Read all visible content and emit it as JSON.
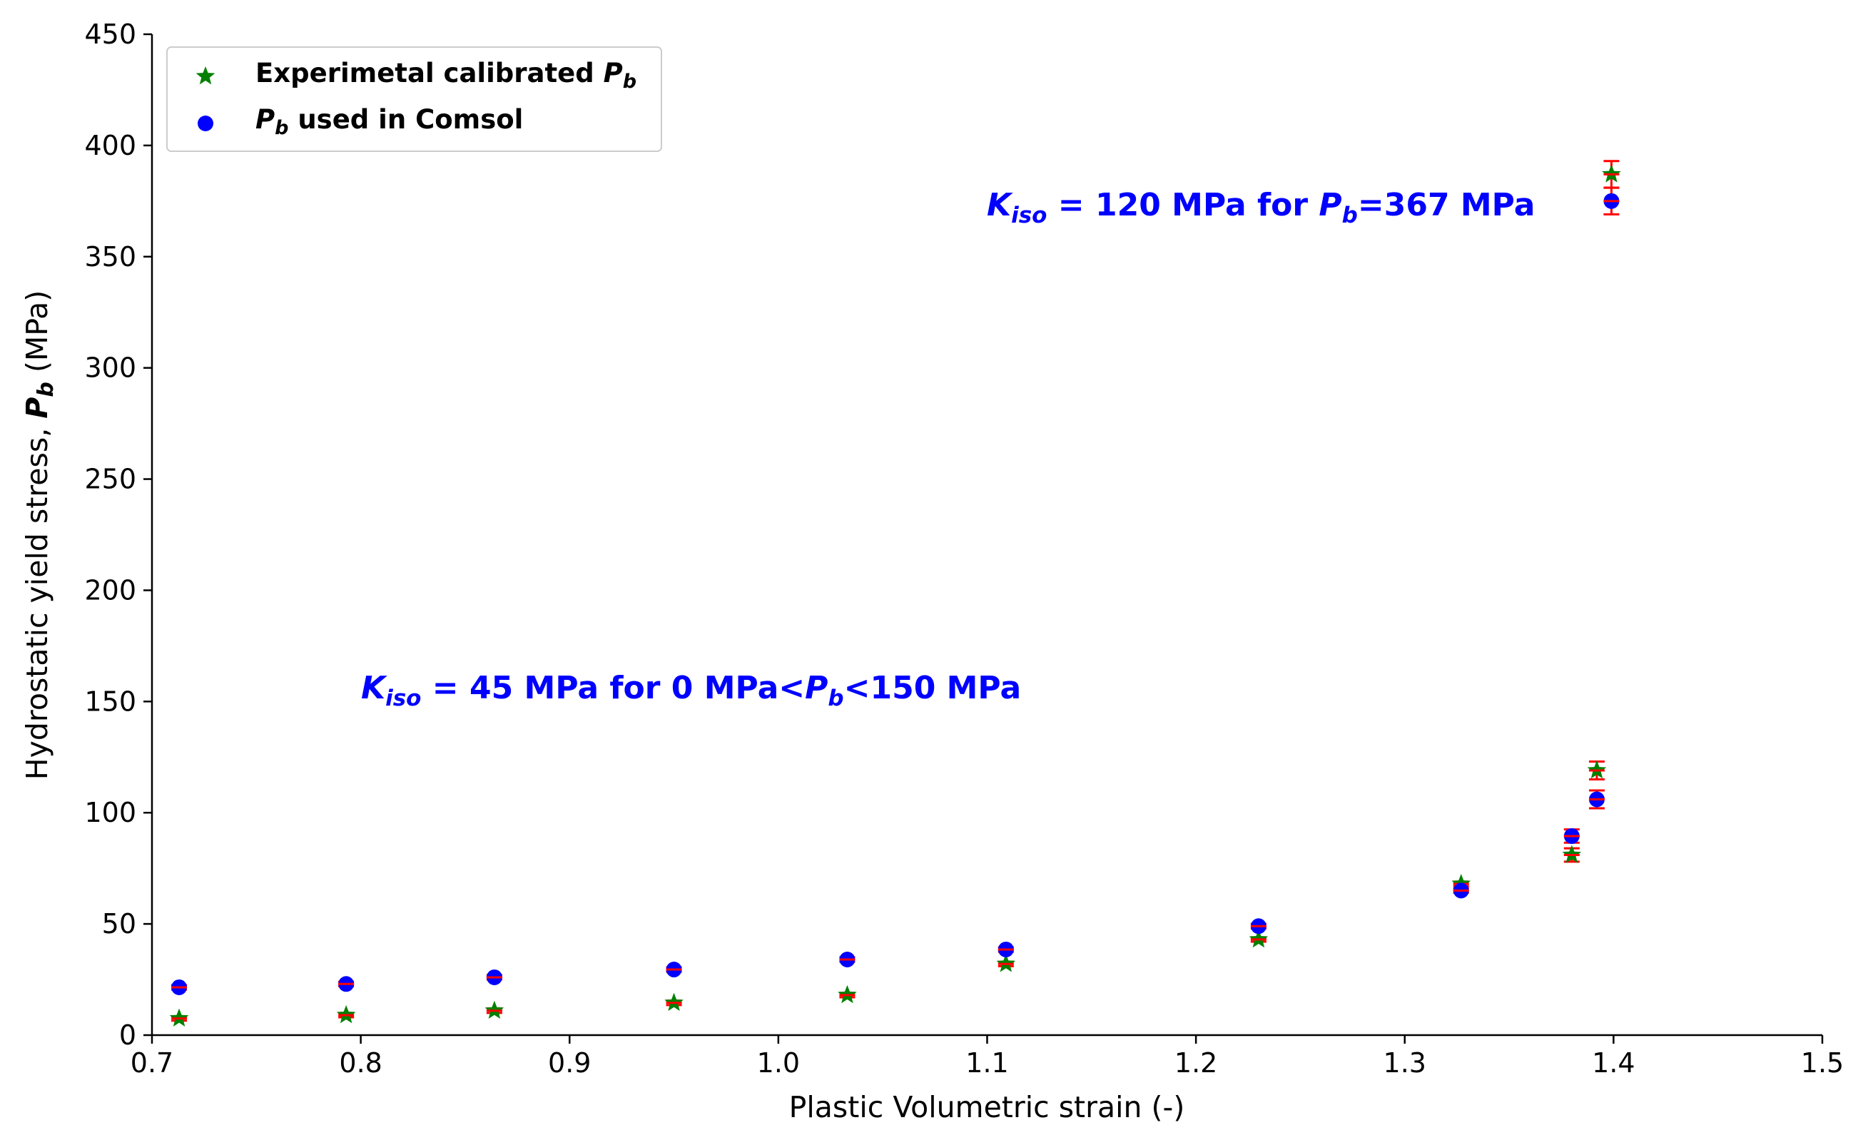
{
  "chart_data": {
    "type": "scatter",
    "title": "",
    "xlabel": "Plastic Volumetric strain (-)",
    "ylabel_parts": {
      "prefix": "Hydrostatic yield stress, ",
      "symbol": "P",
      "subscript": "b",
      "suffix": " (MPa)"
    },
    "xlim": [
      0.7,
      1.5
    ],
    "ylim": [
      0,
      450
    ],
    "xticks": [
      "0.7",
      "0.8",
      "0.9",
      "1.0",
      "1.1",
      "1.2",
      "1.3",
      "1.4",
      "1.5"
    ],
    "yticks": [
      "0",
      "50",
      "100",
      "150",
      "200",
      "250",
      "300",
      "350",
      "400",
      "450"
    ],
    "xtick_values": [
      0.7,
      0.8,
      0.9,
      1.0,
      1.1,
      1.2,
      1.3,
      1.4,
      1.5
    ],
    "ytick_values": [
      0,
      50,
      100,
      150,
      200,
      250,
      300,
      350,
      400,
      450
    ],
    "grid": false,
    "legend_position": "top-left",
    "series": [
      {
        "name": "Experimetal calibrated P_b",
        "label_main": "Experimetal calibrated ",
        "label_symbol": "P",
        "label_sub": "b",
        "marker": "star",
        "color": "#008000",
        "x": [
          0.713,
          0.793,
          0.864,
          0.95,
          1.033,
          1.109,
          1.23,
          1.327,
          1.38,
          1.392,
          1.399
        ],
        "y": [
          7.5,
          9,
          11,
          14.5,
          18,
          32,
          43,
          68,
          81,
          119,
          387
        ],
        "err": [
          1,
          1,
          1,
          1,
          1,
          1,
          1,
          1,
          3,
          4,
          6
        ]
      },
      {
        "name": "P_b used in Comsol",
        "label_main": " used in Comsol",
        "label_symbol": "P",
        "label_sub": "b",
        "marker": "circle",
        "color": "#0000ff",
        "x": [
          0.713,
          0.793,
          0.864,
          0.95,
          1.033,
          1.109,
          1.23,
          1.327,
          1.38,
          1.392,
          1.399
        ],
        "y": [
          21.5,
          23,
          26,
          29.5,
          34,
          38.5,
          49,
          65,
          89.5,
          106,
          375
        ],
        "err": [
          1,
          1,
          1,
          1,
          1,
          1,
          1,
          1,
          3,
          4,
          6
        ]
      }
    ],
    "errorbar_color": "#ff0000",
    "annotations": [
      {
        "lead": "K",
        "sub": "iso",
        "tail": " = 120 MPa for ",
        "sym": "P",
        "sym_sub": "b",
        "end": "=367 MPa",
        "x": 1.101,
        "y": 370,
        "color": "#0000ff"
      },
      {
        "lead": "K",
        "sub": "iso",
        "tail": " = 45 MPa for 0 MPa<",
        "sym": "P",
        "sym_sub": "b",
        "end": "<150 MPa",
        "x": 0.8,
        "y": 152,
        "color": "#0000ff"
      }
    ]
  }
}
